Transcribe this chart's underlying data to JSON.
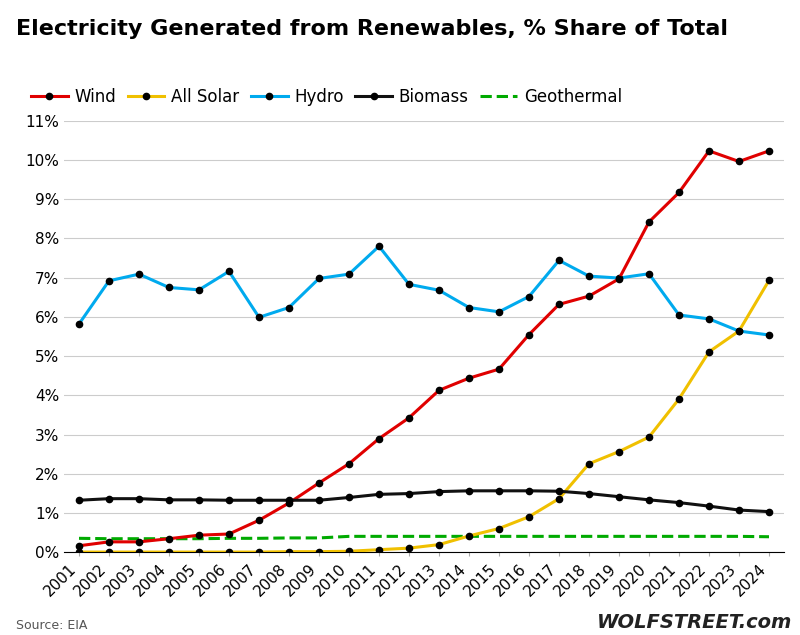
{
  "title": "Electricity Generated from Renewables, % Share of Total",
  "source": "Source: EIA",
  "watermark": "WOLFSTREET.com",
  "years": [
    2001,
    2002,
    2003,
    2004,
    2005,
    2006,
    2007,
    2008,
    2009,
    2010,
    2011,
    2012,
    2013,
    2014,
    2015,
    2016,
    2017,
    2018,
    2019,
    2020,
    2021,
    2022,
    2023,
    2024
  ],
  "wind": [
    0.17,
    0.27,
    0.27,
    0.35,
    0.44,
    0.47,
    0.82,
    1.26,
    1.77,
    2.26,
    2.9,
    3.43,
    4.13,
    4.44,
    4.67,
    5.55,
    6.32,
    6.53,
    6.97,
    8.42,
    9.17,
    10.23,
    9.96,
    10.23
  ],
  "all_solar": [
    0.01,
    0.01,
    0.01,
    0.01,
    0.01,
    0.01,
    0.01,
    0.02,
    0.02,
    0.03,
    0.07,
    0.11,
    0.2,
    0.42,
    0.61,
    0.91,
    1.37,
    2.26,
    2.57,
    2.94,
    3.91,
    5.11,
    5.64,
    6.93
  ],
  "hydro": [
    5.82,
    6.92,
    7.09,
    6.75,
    6.69,
    7.16,
    5.99,
    6.24,
    6.98,
    7.09,
    7.8,
    6.83,
    6.68,
    6.24,
    6.13,
    6.52,
    7.44,
    7.04,
    6.99,
    7.1,
    6.05,
    5.95,
    5.64,
    5.54
  ],
  "biomass": [
    1.33,
    1.37,
    1.37,
    1.34,
    1.34,
    1.33,
    1.33,
    1.33,
    1.33,
    1.4,
    1.48,
    1.5,
    1.55,
    1.57,
    1.57,
    1.57,
    1.56,
    1.5,
    1.42,
    1.34,
    1.27,
    1.18,
    1.08,
    1.04
  ],
  "geothermal": [
    0.36,
    0.35,
    0.35,
    0.35,
    0.35,
    0.36,
    0.36,
    0.37,
    0.37,
    0.41,
    0.41,
    0.41,
    0.41,
    0.41,
    0.41,
    0.41,
    0.41,
    0.41,
    0.41,
    0.41,
    0.41,
    0.41,
    0.41,
    0.4
  ],
  "wind_color": "#e00000",
  "solar_color": "#f0c000",
  "hydro_color": "#00aaee",
  "biomass_color": "#111111",
  "geothermal_color": "#00aa00",
  "ylim": [
    0,
    11
  ],
  "yticks": [
    0,
    1,
    2,
    3,
    4,
    5,
    6,
    7,
    8,
    9,
    10,
    11
  ],
  "background_color": "#ffffff",
  "title_fontsize": 16,
  "legend_fontsize": 12,
  "tick_fontsize": 11
}
